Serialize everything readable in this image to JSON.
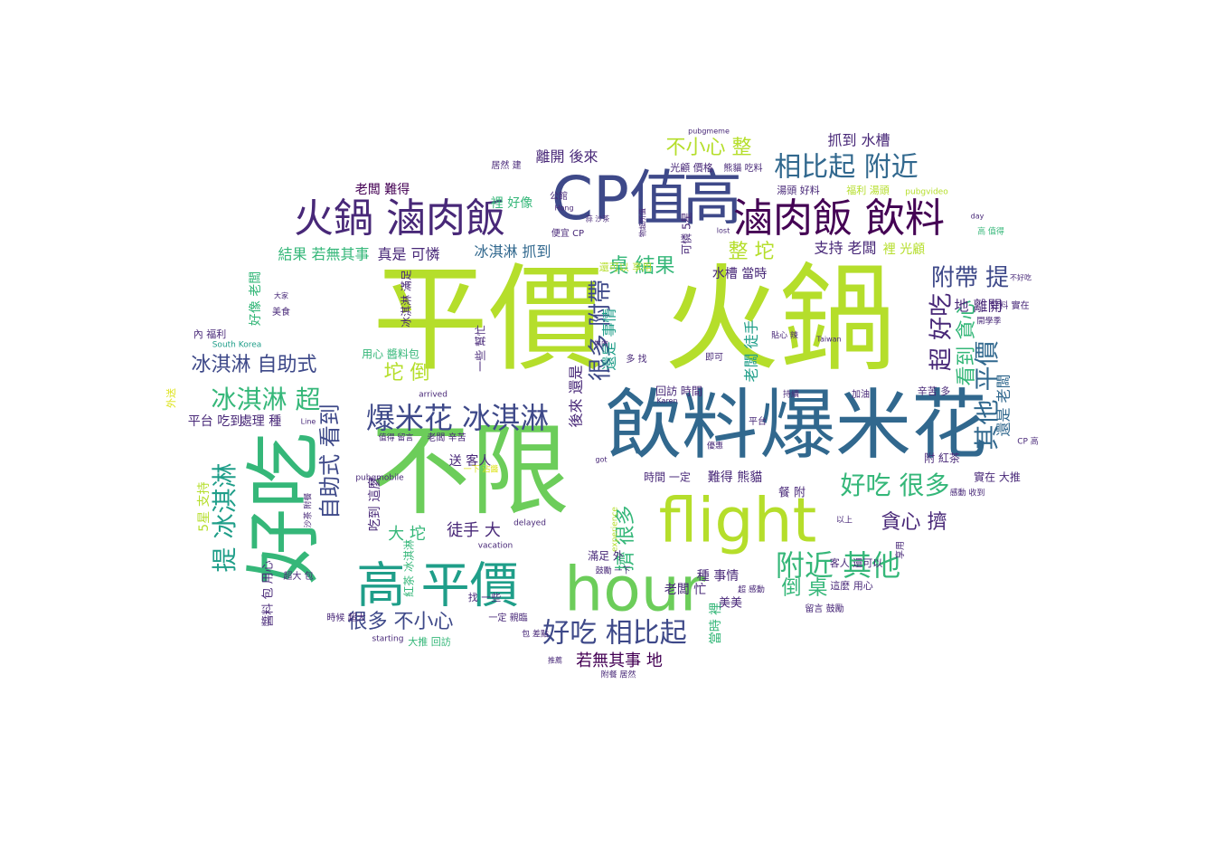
{
  "palette": {
    "lime": "#b5de2b",
    "green": "#6ccd5a",
    "teal": "#35b779",
    "aqua": "#1f9e89",
    "blue": "#26828e",
    "steel": "#31688e",
    "indigo": "#3e4989",
    "purple": "#482878",
    "dark": "#440154",
    "yellow": "#dde318"
  },
  "words": [
    {
      "text": "平價",
      "color": "lime"
    },
    {
      "text": "火鍋",
      "color": "lime"
    },
    {
      "text": "不限",
      "color": "green"
    },
    {
      "text": "飲料",
      "color": "steel"
    },
    {
      "text": "爆米花",
      "color": "steel"
    },
    {
      "text": "好吃",
      "color": "teal"
    },
    {
      "text": "CP值",
      "color": "indigo"
    },
    {
      "text": "高",
      "color": "indigo"
    },
    {
      "text": "flight",
      "color": "lime"
    },
    {
      "text": "hour",
      "color": "green"
    },
    {
      "text": "高 平價",
      "color": "aqua"
    },
    {
      "text": "火鍋 滷肉飯",
      "color": "purple"
    },
    {
      "text": "滷肉飯 飲料",
      "color": "dark"
    },
    {
      "text": "相比起 附近",
      "color": "steel"
    },
    {
      "text": "爆米花 冰淇淋",
      "color": "indigo"
    },
    {
      "text": "好吃 相比起",
      "color": "indigo"
    },
    {
      "text": "附近 其他",
      "color": "teal"
    },
    {
      "text": "好吃 很多",
      "color": "teal"
    },
    {
      "text": "冰淇淋 超",
      "color": "teal"
    },
    {
      "text": "冰淇淋 自助式",
      "color": "indigo"
    },
    {
      "text": "提 冰淇淋",
      "color": "aqua"
    },
    {
      "text": "自助式 看到",
      "color": "indigo"
    },
    {
      "text": "很多 不小心",
      "color": "indigo"
    },
    {
      "text": "貪心 擠",
      "color": "purple"
    },
    {
      "text": "附帶 提",
      "color": "indigo"
    },
    {
      "text": "超 好吃",
      "color": "purple"
    },
    {
      "text": "其他 平價",
      "color": "steel"
    },
    {
      "text": "看到 貪心",
      "color": "teal"
    },
    {
      "text": "很多 附帶",
      "color": "indigo"
    },
    {
      "text": "桌 結果",
      "color": "teal"
    },
    {
      "text": "整 坨",
      "color": "lime"
    },
    {
      "text": "不小心 整",
      "color": "lime"
    },
    {
      "text": "坨 倒",
      "color": "lime"
    },
    {
      "text": "倒 桌",
      "color": "teal"
    },
    {
      "text": "大 坨",
      "color": "teal"
    },
    {
      "text": "徒手 大",
      "color": "purple"
    },
    {
      "text": "擠 很多",
      "color": "teal"
    },
    {
      "text": "若無其事 地",
      "color": "dark"
    },
    {
      "text": "結果 若無其事",
      "color": "teal"
    },
    {
      "text": "真是 可憐",
      "color": "purple"
    },
    {
      "text": "冰淇淋 抓到",
      "color": "steel"
    },
    {
      "text": "抓到 水槽",
      "color": "purple"
    },
    {
      "text": "離開 後來",
      "color": "purple"
    },
    {
      "text": "地 離開",
      "color": "purple"
    },
    {
      "text": "支持 老闆",
      "color": "purple"
    },
    {
      "text": "裡 光顧",
      "color": "lime"
    },
    {
      "text": "裡 好像",
      "color": "teal"
    },
    {
      "text": "老闆 難得",
      "color": "dark"
    },
    {
      "text": "水槽 當時",
      "color": "purple"
    },
    {
      "text": "還是 老闆",
      "color": "steel"
    },
    {
      "text": "老闆 徒手",
      "color": "aqua"
    },
    {
      "text": "還是 事情",
      "color": "aqua"
    },
    {
      "text": "後來 還是",
      "color": "purple"
    },
    {
      "text": "處理 種",
      "color": "purple"
    },
    {
      "text": "平台 吃到",
      "color": "purple"
    },
    {
      "text": "吃到 這麼",
      "color": "purple"
    },
    {
      "text": "送 客人",
      "color": "purple"
    },
    {
      "text": "時間 一定",
      "color": "purple"
    },
    {
      "text": "難得 熊貓",
      "color": "purple"
    },
    {
      "text": "餐 附",
      "color": "purple"
    },
    {
      "text": "種 事情",
      "color": "purple"
    },
    {
      "text": "老闆 忙",
      "color": "purple"
    },
    {
      "text": "當時 裡",
      "color": "teal"
    },
    {
      "text": "5星 支持",
      "color": "lime"
    },
    {
      "text": "好像 老闆",
      "color": "teal"
    },
    {
      "text": "冰淇淋 滿足",
      "color": "purple"
    },
    {
      "text": "用心 醬料包",
      "color": "teal"
    },
    {
      "text": "醬料 包 用心",
      "color": "purple"
    },
    {
      "text": "紅茶 冰淇淋",
      "color": "teal"
    },
    {
      "text": "找 一些",
      "color": "purple"
    },
    {
      "text": "大推 回訪",
      "color": "teal"
    },
    {
      "text": "外送",
      "color": "yellow"
    },
    {
      "text": "內 福利",
      "color": "purple"
    },
    {
      "text": "South Korea",
      "color": "aqua"
    },
    {
      "text": "pubgmobile",
      "color": "purple"
    },
    {
      "text": "vacation",
      "color": "purple"
    },
    {
      "text": "experience",
      "color": "lime"
    },
    {
      "text": "delayed",
      "color": "purple"
    },
    {
      "text": "arrived",
      "color": "purple"
    },
    {
      "text": "starting",
      "color": "purple"
    },
    {
      "text": "pubgmeme",
      "color": "purple"
    },
    {
      "text": "pubgvideo",
      "color": "lime"
    },
    {
      "text": "day",
      "color": "purple"
    },
    {
      "text": "lost",
      "color": "purple"
    },
    {
      "text": "Taiwan",
      "color": "purple"
    },
    {
      "text": "Karen",
      "color": "purple"
    },
    {
      "text": "Line",
      "color": "purple"
    },
    {
      "text": "Hong",
      "color": "purple"
    },
    {
      "text": "got",
      "color": "purple"
    },
    {
      "text": "湯頭 好料",
      "color": "purple"
    },
    {
      "text": "福利 湯頭",
      "color": "lime"
    },
    {
      "text": "光顧 價格",
      "color": "purple"
    },
    {
      "text": "熊貓 吃料",
      "color": "purple"
    },
    {
      "text": "還可以 享用",
      "color": "lime"
    },
    {
      "text": "可憐 5星",
      "color": "purple"
    },
    {
      "text": "回訪 時間",
      "color": "purple"
    },
    {
      "text": "實在 大推",
      "color": "purple"
    },
    {
      "text": "辛苦 多",
      "color": "purple"
    },
    {
      "text": "加油",
      "color": "purple"
    },
    {
      "text": "持續",
      "color": "purple"
    },
    {
      "text": "即可",
      "color": "purple"
    },
    {
      "text": "多 找",
      "color": "purple"
    },
    {
      "text": "一些 幫忙",
      "color": "purple"
    },
    {
      "text": "滿足 外",
      "color": "purple"
    },
    {
      "text": "鼓勵 一下",
      "color": "purple"
    },
    {
      "text": "客人 還可以",
      "color": "purple"
    },
    {
      "text": "這麼 用心",
      "color": "purple"
    },
    {
      "text": "留言 鼓勵",
      "color": "purple"
    },
    {
      "text": "美食",
      "color": "purple"
    },
    {
      "text": "超大 包",
      "color": "purple"
    },
    {
      "text": "時候 超大",
      "color": "purple"
    },
    {
      "text": "居然 建",
      "color": "purple"
    },
    {
      "text": "便宜 CP",
      "color": "purple"
    },
    {
      "text": "公館",
      "color": "purple"
    },
    {
      "text": "高 值得",
      "color": "teal"
    },
    {
      "text": "好料 實在",
      "color": "purple"
    },
    {
      "text": "不好吃",
      "color": "purple"
    },
    {
      "text": "CP 高",
      "color": "purple"
    },
    {
      "text": "感動 收到",
      "color": "purple"
    },
    {
      "text": "以上",
      "color": "purple"
    },
    {
      "text": "附餐 居然",
      "color": "purple"
    },
    {
      "text": "推薦",
      "color": "purple"
    },
    {
      "text": "超 感動",
      "color": "purple"
    },
    {
      "text": "包 差點",
      "color": "purple"
    },
    {
      "text": "一定 親臨",
      "color": "purple"
    },
    {
      "text": "值得 留言",
      "color": "purple"
    },
    {
      "text": "老闆 辛苦",
      "color": "purple"
    },
    {
      "text": "優惠",
      "color": "purple"
    },
    {
      "text": "附 紅茶",
      "color": "purple"
    },
    {
      "text": "貼心 辣",
      "color": "purple"
    },
    {
      "text": "享用",
      "color": "purple"
    },
    {
      "text": "平台",
      "color": "purple"
    },
    {
      "text": "沙茶 附餐",
      "color": "purple"
    },
    {
      "text": "大家",
      "color": "purple"
    },
    {
      "text": "一下 沾醬",
      "color": "yellow"
    },
    {
      "text": "物超所值",
      "color": "purple"
    },
    {
      "text": "蒜 沙茶",
      "color": "purple"
    },
    {
      "text": "牛肉",
      "color": "purple"
    },
    {
      "text": "開學季",
      "color": "purple"
    },
    {
      "text": "美美",
      "color": "purple"
    }
  ]
}
